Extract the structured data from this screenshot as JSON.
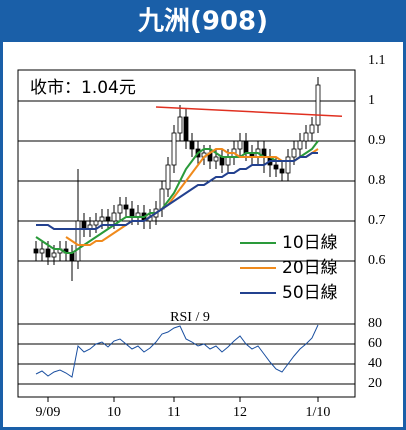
{
  "chart_data": {
    "type": "candlestick",
    "title": "九洲(908)",
    "close_label": "收市：1.04元",
    "categories": [
      null,
      null,
      "9/09",
      null,
      null,
      null,
      null,
      null,
      null,
      null,
      null,
      null,
      null,
      "10",
      null,
      null,
      null,
      null,
      null,
      null,
      null,
      null,
      null,
      "11",
      null,
      null,
      null,
      null,
      null,
      null,
      null,
      null,
      null,
      null,
      "12",
      null,
      null,
      null,
      null,
      null,
      null,
      null,
      null,
      null,
      null,
      null,
      null,
      "1/10"
    ],
    "open": [
      0.63,
      0.62,
      0.63,
      0.61,
      0.62,
      0.63,
      0.62,
      0.6,
      0.7,
      0.68,
      0.69,
      0.7,
      0.71,
      0.7,
      0.72,
      0.74,
      0.73,
      0.71,
      0.72,
      0.7,
      0.71,
      0.73,
      0.78,
      0.84,
      0.92,
      0.96,
      0.9,
      0.88,
      0.86,
      0.87,
      0.85,
      0.86,
      0.84,
      0.86,
      0.88,
      0.9,
      0.87,
      0.86,
      0.88,
      0.86,
      0.84,
      0.83,
      0.82,
      0.86,
      0.88,
      0.9,
      0.92,
      0.94
    ],
    "high": [
      0.65,
      0.65,
      0.65,
      0.64,
      0.65,
      0.65,
      0.64,
      0.83,
      0.72,
      0.71,
      0.72,
      0.73,
      0.73,
      0.74,
      0.76,
      0.76,
      0.75,
      0.74,
      0.74,
      0.73,
      0.75,
      0.8,
      0.86,
      0.94,
      0.99,
      0.98,
      0.92,
      0.9,
      0.89,
      0.89,
      0.88,
      0.88,
      0.88,
      0.9,
      0.92,
      0.92,
      0.89,
      0.9,
      0.9,
      0.88,
      0.86,
      0.85,
      0.88,
      0.9,
      0.92,
      0.94,
      0.96,
      1.06
    ],
    "low": [
      0.6,
      0.6,
      0.59,
      0.59,
      0.6,
      0.6,
      0.55,
      0.58,
      0.66,
      0.66,
      0.67,
      0.68,
      0.68,
      0.68,
      0.7,
      0.71,
      0.69,
      0.69,
      0.68,
      0.68,
      0.69,
      0.71,
      0.76,
      0.82,
      0.9,
      0.88,
      0.86,
      0.84,
      0.84,
      0.83,
      0.83,
      0.82,
      0.82,
      0.84,
      0.86,
      0.85,
      0.84,
      0.84,
      0.82,
      0.81,
      0.81,
      0.8,
      0.8,
      0.84,
      0.86,
      0.88,
      0.9,
      0.92
    ],
    "close": [
      0.62,
      0.63,
      0.61,
      0.62,
      0.63,
      0.62,
      0.6,
      0.7,
      0.68,
      0.69,
      0.7,
      0.71,
      0.7,
      0.72,
      0.74,
      0.73,
      0.71,
      0.72,
      0.7,
      0.71,
      0.73,
      0.78,
      0.84,
      0.92,
      0.96,
      0.9,
      0.88,
      0.86,
      0.87,
      0.85,
      0.86,
      0.84,
      0.86,
      0.88,
      0.9,
      0.87,
      0.86,
      0.88,
      0.86,
      0.84,
      0.83,
      0.82,
      0.86,
      0.88,
      0.9,
      0.92,
      0.94,
      1.04
    ],
    "series": [
      {
        "name": "10日線",
        "color": "#2a9a3a",
        "values": [
          0.66,
          0.65,
          0.64,
          0.63,
          0.63,
          0.62,
          0.62,
          0.63,
          0.64,
          0.65,
          0.66,
          0.67,
          0.68,
          0.69,
          0.7,
          0.71,
          0.71,
          0.71,
          0.71,
          0.72,
          0.72,
          0.73,
          0.75,
          0.77,
          0.8,
          0.83,
          0.85,
          0.87,
          0.88,
          0.88,
          0.87,
          0.86,
          0.86,
          0.86,
          0.86,
          0.87,
          0.87,
          0.87,
          0.86,
          0.86,
          0.85,
          0.85,
          0.85,
          0.85,
          0.86,
          0.87,
          0.88,
          0.9
        ]
      },
      {
        "name": "20日線",
        "color": "#f08a1c",
        "values": [
          null,
          null,
          null,
          null,
          null,
          0.66,
          0.65,
          0.64,
          0.64,
          0.64,
          0.65,
          0.65,
          0.66,
          0.67,
          0.68,
          0.69,
          0.7,
          0.7,
          0.7,
          0.71,
          0.72,
          0.73,
          0.74,
          0.76,
          0.78,
          0.8,
          0.82,
          0.84,
          0.86,
          0.87,
          0.88,
          0.88,
          0.87,
          0.87,
          0.86,
          0.86,
          0.86,
          0.86,
          0.86,
          0.86,
          0.86,
          0.85,
          0.85,
          0.85,
          0.86,
          0.86,
          0.87,
          0.88
        ]
      },
      {
        "name": "50日線",
        "color": "#23418f",
        "values": [
          0.69,
          0.69,
          0.69,
          0.68,
          0.68,
          0.68,
          0.68,
          0.68,
          0.68,
          0.68,
          0.68,
          0.69,
          0.69,
          0.69,
          0.69,
          0.69,
          0.7,
          0.7,
          0.7,
          0.71,
          0.72,
          0.73,
          0.74,
          0.75,
          0.76,
          0.77,
          0.78,
          0.79,
          0.79,
          0.8,
          0.81,
          0.81,
          0.82,
          0.82,
          0.83,
          0.83,
          0.84,
          0.84,
          0.84,
          0.85,
          0.85,
          0.85,
          0.85,
          0.85,
          0.86,
          0.86,
          0.87,
          0.87
        ]
      }
    ],
    "trendline": {
      "color": "#e03020",
      "x": [
        20,
        51
      ],
      "values": [
        0.985,
        0.962
      ]
    },
    "ylim": [
      0.5,
      1.1
    ],
    "yticks": [
      0.6,
      0.7,
      0.8,
      0.9,
      1.0,
      1.1
    ],
    "rsi": {
      "title": "RSI / 9",
      "color": "#1a4fa0",
      "values": [
        30,
        33,
        28,
        32,
        34,
        31,
        27,
        58,
        52,
        55,
        60,
        62,
        57,
        63,
        65,
        60,
        55,
        58,
        52,
        56,
        62,
        70,
        72,
        76,
        78,
        65,
        62,
        58,
        60,
        55,
        58,
        52,
        57,
        63,
        68,
        60,
        55,
        58,
        50,
        42,
        35,
        32,
        40,
        48,
        55,
        60,
        66,
        79
      ],
      "ylim": [
        15,
        95
      ],
      "yticks": [
        20,
        40,
        60,
        80
      ]
    }
  }
}
